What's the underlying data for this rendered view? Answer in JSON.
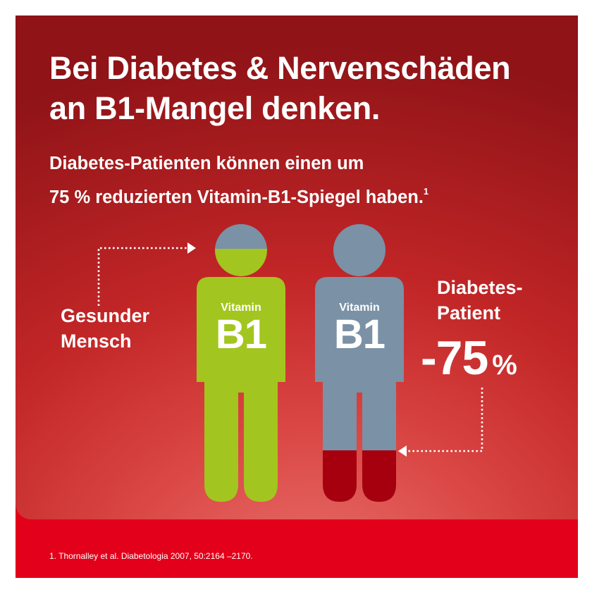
{
  "title": {
    "line1": "Bei Diabetes & Nervenschäden",
    "line2": "an B1-Mangel denken."
  },
  "subtitle": {
    "line1": "Diabetes-Patienten können einen um",
    "line2": "75 % reduzierten Vitamin-B1-Spiegel haben.",
    "footnote_mark": "1"
  },
  "healthy": {
    "label_line1": "Gesunder",
    "label_line2": "Mensch",
    "vitamin_small": "Vitamin",
    "vitamin_big": "B1",
    "fill_fraction": 1.0
  },
  "patient": {
    "label_line1": "Diabetes-",
    "label_line2": "Patient",
    "reduction": "-75",
    "unit": "%",
    "vitamin_small": "Vitamin",
    "vitamin_big": "B1",
    "fill_fraction": 0.25
  },
  "colors": {
    "healthy_green": "#a3c51f",
    "patient_gray": "#7a91a6",
    "level_red": "#a6000f",
    "brand_red": "#e2001a"
  },
  "footnote": "1. Thornalley et al. Diabetologia 2007, 50:2164 –2170."
}
